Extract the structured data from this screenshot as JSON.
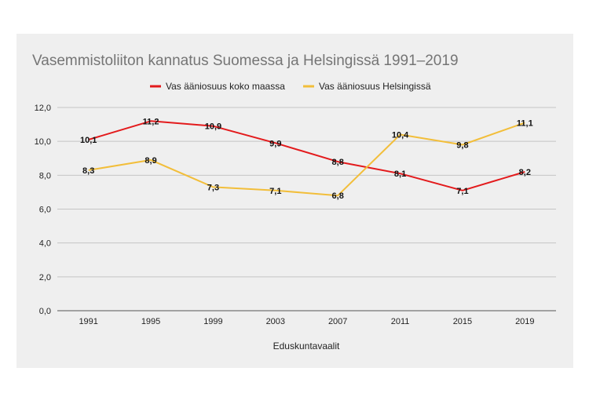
{
  "chart_data": {
    "type": "line",
    "title": "Vasemmistoliiton kannatus Suomessa ja Helsingissä 1991–2019",
    "xlabel": "Eduskuntavaalit",
    "ylabel": "",
    "categories": [
      "1991",
      "1995",
      "1999",
      "2003",
      "2007",
      "2011",
      "2015",
      "2019"
    ],
    "ylim": [
      0,
      12
    ],
    "yticks": [
      "0,0",
      "2,0",
      "4,0",
      "6,0",
      "8,0",
      "10,0",
      "12,0"
    ],
    "grid": true,
    "legend_position": "top",
    "series": [
      {
        "name": "Vas ääniosuus koko maassa",
        "color": "#e31a1c",
        "values": [
          10.1,
          11.2,
          10.9,
          9.9,
          8.8,
          8.1,
          7.1,
          8.2
        ],
        "labels": [
          "10,1",
          "11,2",
          "10,9",
          "9,9",
          "8,8",
          "8,1",
          "7,1",
          "8,2"
        ]
      },
      {
        "name": "Vas ääniosuus Helsingissä",
        "color": "#f2be3a",
        "values": [
          8.3,
          8.9,
          7.3,
          7.1,
          6.8,
          10.4,
          9.8,
          11.1
        ],
        "labels": [
          "8,3",
          "8,9",
          "7,3",
          "7,1",
          "6,8",
          "10,4",
          "9,8",
          "11,1"
        ]
      }
    ]
  }
}
